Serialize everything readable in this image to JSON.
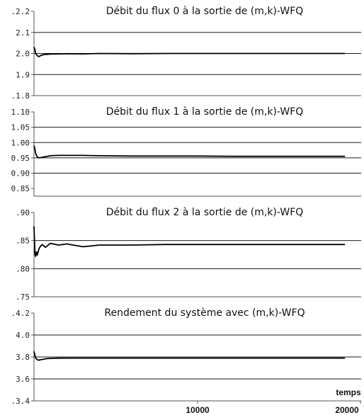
{
  "chart_data": [
    {
      "type": "line",
      "title": "Débit du flux 0 à la sortie de (m,k)-WFQ",
      "ylim": [
        1.8,
        2.2
      ],
      "y_ticks": [
        {
          "value": 2.2,
          "label": ".2.2"
        },
        {
          "value": 2.1,
          "label": "2.1"
        },
        {
          "value": 2.0,
          "label": "2.0"
        },
        {
          "value": 1.9,
          "label": "1.9"
        },
        {
          "value": 1.8,
          "label": ".1.8"
        }
      ],
      "gridlines": [
        2.1,
        2.0,
        1.9
      ],
      "grid": true,
      "x": [
        0,
        50,
        100,
        200,
        300,
        400,
        600,
        800,
        1000,
        1500,
        2000,
        3000,
        4000,
        6000,
        8000,
        10000,
        12000,
        15000,
        18000,
        19000
      ],
      "values": [
        2.03,
        2.02,
        2.0,
        1.99,
        1.985,
        1.99,
        1.995,
        1.996,
        1.997,
        1.998,
        1.999,
        1.998,
        2.0,
        1.999,
        2.0,
        2.0,
        2.0,
        2.0,
        2.0,
        2.0
      ]
    },
    {
      "type": "line",
      "title": "Débit du flux 1 à la sortie de (m,k)-WFQ",
      "ylim": [
        0.825,
        1.1
      ],
      "y_ticks": [
        {
          "value": 1.1,
          "label": "1.10"
        },
        {
          "value": 1.05,
          "label": "1.05"
        },
        {
          "value": 1.0,
          "label": "1.00"
        },
        {
          "value": 0.95,
          "label": "0.95"
        },
        {
          "value": 0.9,
          "label": "0.90"
        },
        {
          "value": 0.85,
          "label": "0.85"
        }
      ],
      "gridlines": [
        1.05,
        1.0,
        0.95,
        0.9
      ],
      "grid": true,
      "x": [
        0,
        50,
        100,
        200,
        300,
        400,
        600,
        800,
        1000,
        1500,
        2000,
        3000,
        4000,
        6000,
        8000,
        10000,
        12000,
        15000,
        18000,
        19000
      ],
      "values": [
        0.99,
        0.98,
        0.965,
        0.953,
        0.95,
        0.951,
        0.953,
        0.955,
        0.957,
        0.958,
        0.958,
        0.958,
        0.957,
        0.956,
        0.956,
        0.956,
        0.955,
        0.955,
        0.955,
        0.955
      ]
    },
    {
      "type": "line",
      "title": "Débit du flux 2 à la sortie de (m,k)-WFQ",
      "ylim": [
        0.75,
        0.9
      ],
      "y_ticks": [
        {
          "value": 0.9,
          "label": ".90"
        },
        {
          "value": 0.85,
          "label": ".85"
        },
        {
          "value": 0.8,
          "label": ".80"
        },
        {
          "value": 0.75,
          "label": ".75"
        }
      ],
      "gridlines": [
        0.85,
        0.8
      ],
      "grid": true,
      "x": [
        0,
        30,
        60,
        100,
        150,
        200,
        300,
        400,
        500,
        700,
        1000,
        1500,
        2000,
        3000,
        4000,
        6000,
        8000,
        10000,
        12000,
        15000,
        18000,
        19000
      ],
      "values": [
        0.875,
        0.85,
        0.825,
        0.822,
        0.83,
        0.824,
        0.835,
        0.84,
        0.843,
        0.838,
        0.845,
        0.842,
        0.844,
        0.839,
        0.842,
        0.842,
        0.843,
        0.843,
        0.843,
        0.843,
        0.843,
        0.843
      ]
    },
    {
      "type": "line",
      "title": "Rendement du système avec (m,k)-WFQ",
      "ylim": [
        3.4,
        4.2
      ],
      "y_ticks": [
        {
          "value": 4.2,
          "label": ".4.2"
        },
        {
          "value": 4.0,
          "label": "4.0"
        },
        {
          "value": 3.8,
          "label": "3.8"
        },
        {
          "value": 3.6,
          "label": "3.6"
        },
        {
          "value": 3.4,
          "label": ".3.4"
        }
      ],
      "gridlines": [
        4.0,
        3.8,
        3.6
      ],
      "grid": true,
      "x": [
        0,
        50,
        100,
        200,
        300,
        400,
        600,
        800,
        1000,
        1500,
        2000,
        4000,
        6000,
        8000,
        10000,
        12000,
        15000,
        18000,
        19000
      ],
      "values": [
        3.85,
        3.82,
        3.79,
        3.775,
        3.77,
        3.775,
        3.78,
        3.785,
        3.787,
        3.789,
        3.79,
        3.79,
        3.79,
        3.79,
        3.79,
        3.79,
        3.79,
        3.79,
        3.79
      ]
    }
  ],
  "x_axis": {
    "label": "temps",
    "xlim": [
      0,
      20000
    ],
    "ticks": [
      {
        "value": 10000,
        "label": "10000"
      },
      {
        "value": 20000,
        "label": "20000"
      }
    ]
  }
}
